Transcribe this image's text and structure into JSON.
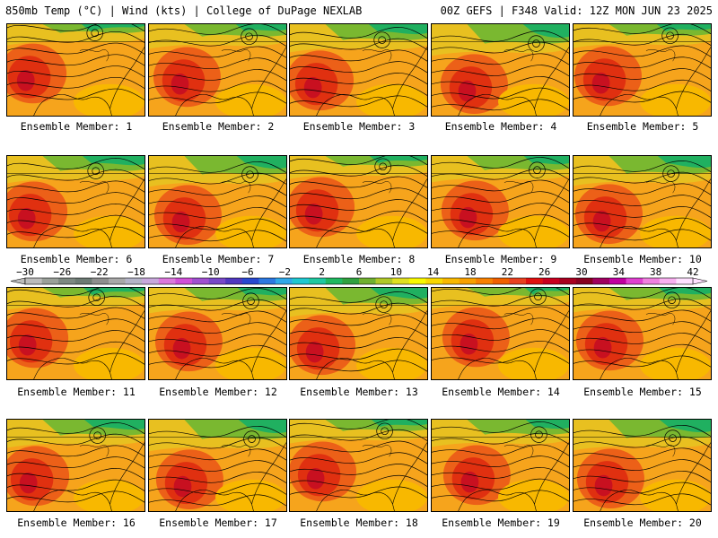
{
  "header": {
    "left": "850mb Temp (°C) | Wind (kts) | College of DuPage NEXLAB",
    "right": "00Z GEFS | F348 Valid: 12Z MON JUN 23 2025"
  },
  "member_prefix": "Ensemble Member:",
  "members": [
    "1",
    "2",
    "3",
    "4",
    "5",
    "6",
    "7",
    "8",
    "9",
    "10",
    "11",
    "12",
    "13",
    "14",
    "15",
    "16",
    "17",
    "18",
    "19",
    "20"
  ],
  "colorbar": {
    "ticks": [
      "−30",
      "−26",
      "−22",
      "−18",
      "−14",
      "−10",
      "−6",
      "−2",
      "2",
      "6",
      "10",
      "14",
      "18",
      "22",
      "26",
      "30",
      "34",
      "38",
      "42"
    ],
    "colors": [
      "#bcbcbc",
      "#9aa09a",
      "#7d8882",
      "#6c7a74",
      "#8e8e8e",
      "#a8a8a8",
      "#b4b4c8",
      "#c8a8dc",
      "#dc78dc",
      "#d050d8",
      "#a050d0",
      "#7848c8",
      "#5038c0",
      "#2848d0",
      "#2c78e0",
      "#30a8e8",
      "#20c8d0",
      "#20c8a0",
      "#20b860",
      "#30a040",
      "#70b030",
      "#b0c828",
      "#e0e020",
      "#f8f800",
      "#f8d800",
      "#f8b800",
      "#f8a000",
      "#f88000",
      "#f06000",
      "#e84020",
      "#e01010",
      "#c80020",
      "#a80020",
      "#880020",
      "#a00060",
      "#c000a0",
      "#e040d0",
      "#f080e0",
      "#f8b0f0",
      "#ffe0ff"
    ]
  }
}
